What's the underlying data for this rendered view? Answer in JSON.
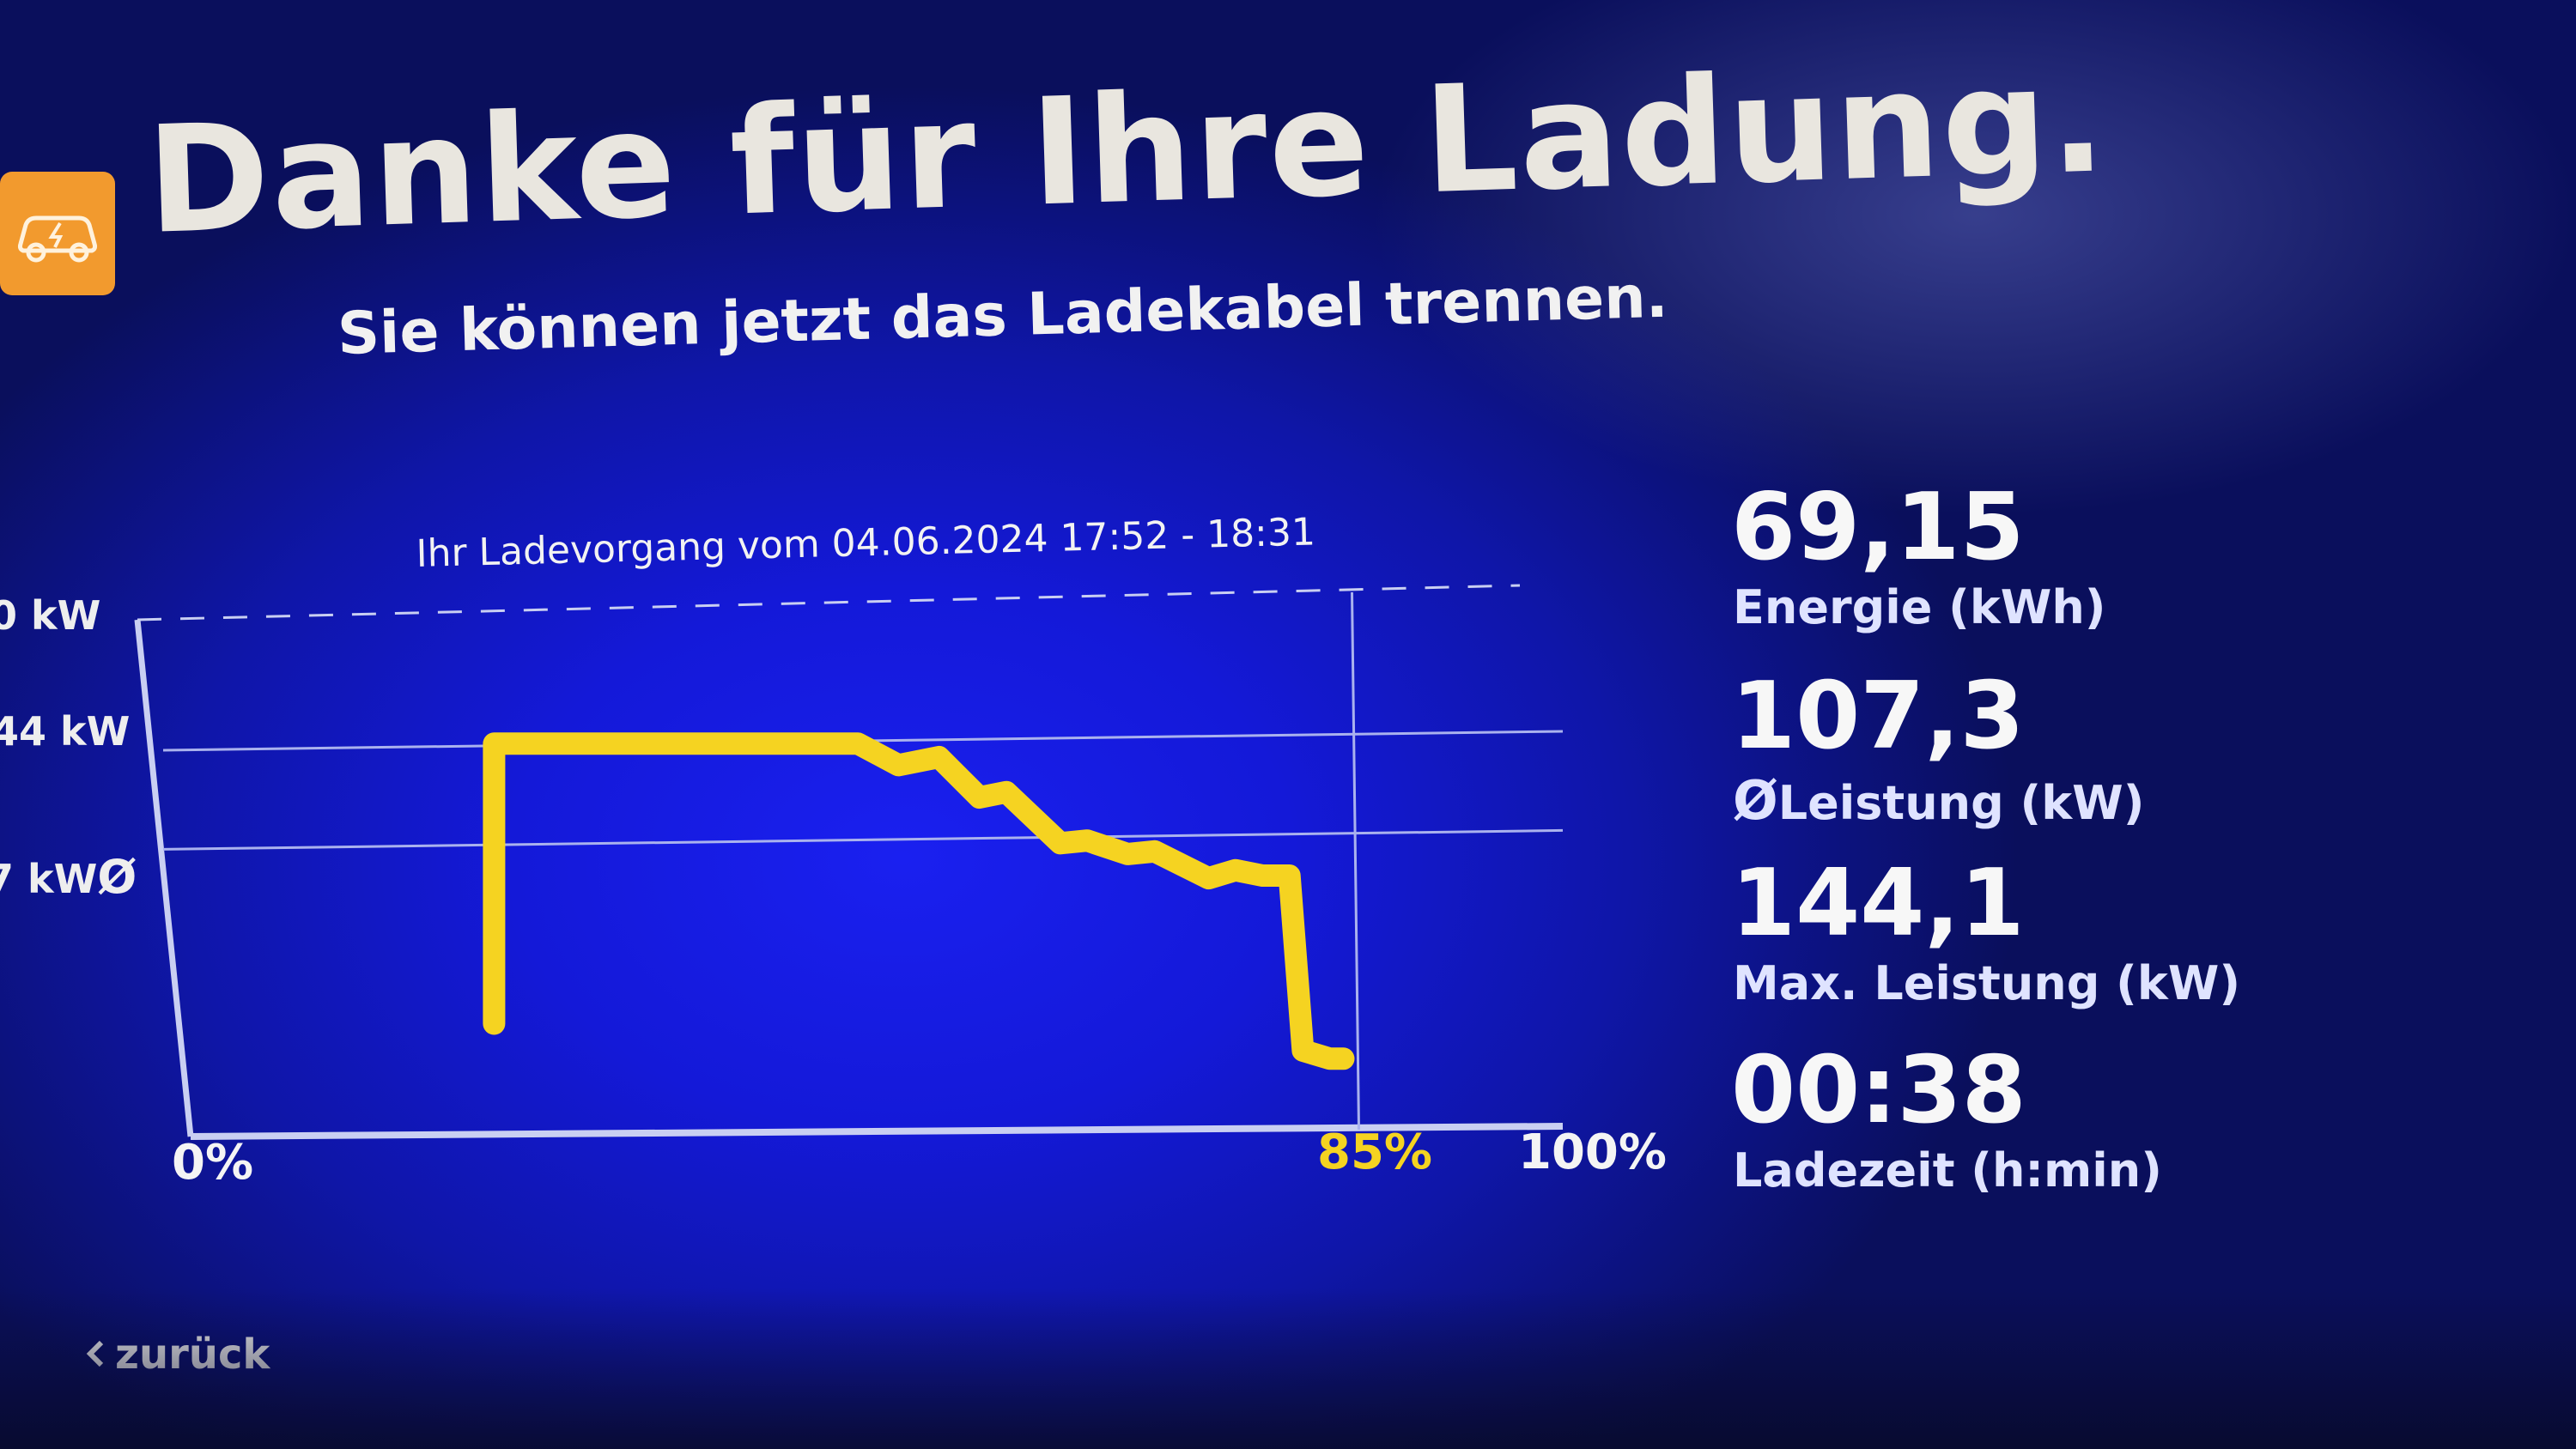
{
  "header": {
    "title": "Danke für Ihre Ladung.",
    "subtitle": "Sie können jetzt das Ladekabel trennen."
  },
  "colors": {
    "screen_blue": "#1419d8",
    "accent_orange": "#f29a2e",
    "chart_line": "#f5d321",
    "axis": "#c9cff2"
  },
  "icons": {
    "logo": "car-charging-icon",
    "back": "chevron-left-icon"
  },
  "chart_data": {
    "type": "line",
    "title": "Ihr Ladevorgang vom 04.06.2024 17:52 - 18:31",
    "y_tick_labels": [
      "0 kW",
      "44 kW",
      "7 kW"
    ],
    "y_average_marker": "Ø",
    "x_tick_labels": [
      "0%",
      "85%",
      "100%"
    ],
    "current_soc_label": "85%",
    "xlim": [
      0,
      100
    ],
    "ylim": [
      0,
      190
    ],
    "series": [
      {
        "x": [
          22,
          22,
          30,
          40,
          49,
          52,
          55,
          58,
          60,
          64,
          66,
          69,
          71,
          75,
          77,
          79,
          81,
          82,
          84,
          85
        ],
        "y": [
          40,
          144,
          144,
          144,
          144,
          136,
          139,
          124,
          126,
          107,
          108,
          103,
          104,
          94,
          97,
          95,
          95,
          30,
          27,
          27
        ]
      }
    ],
    "reference_lines": [
      144.1,
      107.3
    ],
    "grid": false
  },
  "stats": [
    {
      "value": "69,15",
      "label": "Energie (kWh)"
    },
    {
      "value": "107,3",
      "label": "Leistung (kW)",
      "prefix": "Ø"
    },
    {
      "value": "144,1",
      "label": "Max. Leistung (kW)"
    },
    {
      "value": "00:38",
      "label": "Ladezeit (h:min)"
    }
  ],
  "footer": {
    "back_label": "zurück"
  }
}
